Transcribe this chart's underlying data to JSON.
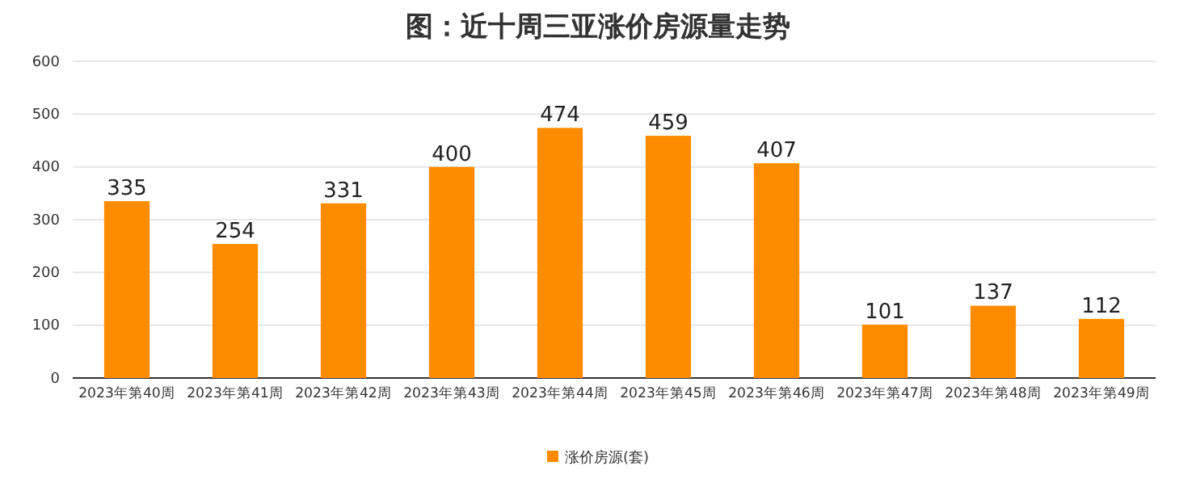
{
  "chart_data": {
    "type": "bar",
    "title": "图：近十周三亚涨价房源量走势",
    "categories": [
      "2023年第40周",
      "2023年第41周",
      "2023年第42周",
      "2023年第43周",
      "2023年第44周",
      "2023年第45周",
      "2023年第46周",
      "2023年第47周",
      "2023年第48周",
      "2023年第49周"
    ],
    "series": [
      {
        "name": "涨价房源(套)",
        "color": "#ff8c00",
        "values": [
          335,
          254,
          331,
          400,
          474,
          459,
          407,
          101,
          137,
          112
        ]
      }
    ],
    "ylim": [
      0,
      600
    ],
    "yticks": [
      0,
      100,
      200,
      300,
      400,
      500,
      600
    ],
    "grid": "y",
    "legend": "bottom",
    "data_labels": true
  }
}
